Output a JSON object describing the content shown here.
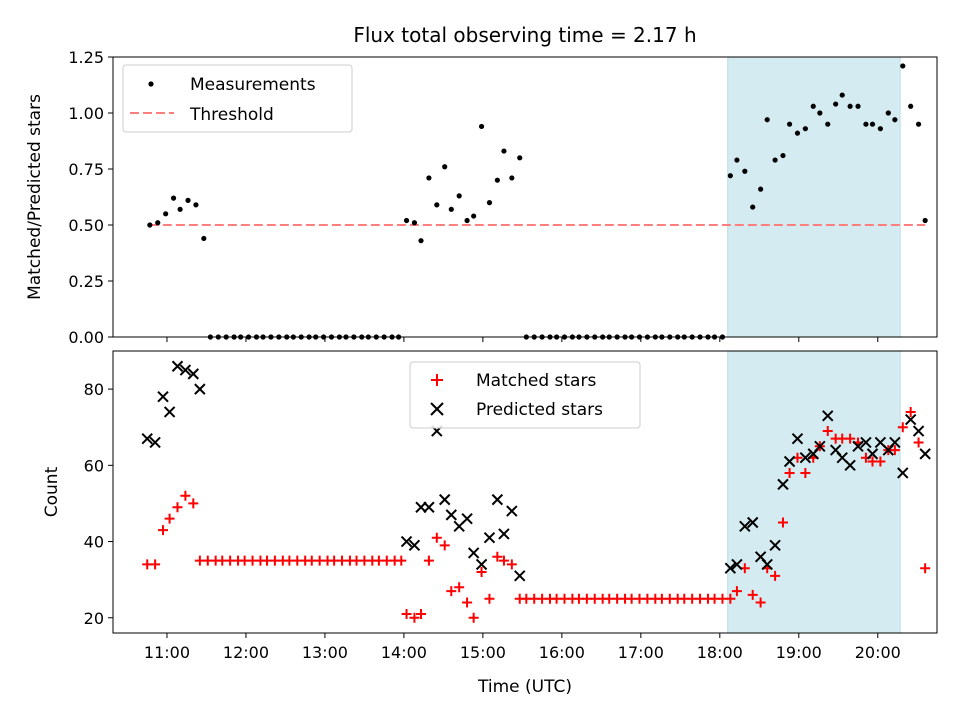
{
  "title": "Flux total observing time = 2.17 h",
  "chart_data": [
    {
      "type": "scatter",
      "ylabel": "Matched/Predicted stars",
      "xlim": [
        "10:19",
        "20:45"
      ],
      "ylim": [
        0,
        1.25
      ],
      "yticks": [
        "0.00",
        "0.25",
        "0.50",
        "0.75",
        "1.00",
        "1.25"
      ],
      "threshold": 0.5,
      "highlight_span": [
        "18:06",
        "20:17"
      ],
      "highlight_color": "#d4ebf1",
      "legend": {
        "placement": "top-left",
        "measurements": "Measurements",
        "threshold": "Threshold"
      },
      "series": [
        {
          "name": "Measurements",
          "color": "#000000",
          "points": [
            [
              "10:47",
              0.5
            ],
            [
              "10:53",
              0.51
            ],
            [
              "10:59",
              0.55
            ],
            [
              "11:05",
              0.62
            ],
            [
              "11:10",
              0.57
            ],
            [
              "11:16",
              0.61
            ],
            [
              "11:22",
              0.59
            ],
            [
              "11:28",
              0.44
            ],
            [
              "11:33",
              0
            ],
            [
              "11:39",
              0
            ],
            [
              "11:45",
              0
            ],
            [
              "11:51",
              0
            ],
            [
              "11:56",
              0
            ],
            [
              "12:02",
              0
            ],
            [
              "12:08",
              0
            ],
            [
              "12:13",
              0
            ],
            [
              "12:19",
              0
            ],
            [
              "12:25",
              0
            ],
            [
              "12:31",
              0
            ],
            [
              "12:36",
              0
            ],
            [
              "12:42",
              0
            ],
            [
              "12:48",
              0
            ],
            [
              "12:53",
              0
            ],
            [
              "12:59",
              0
            ],
            [
              "13:05",
              0
            ],
            [
              "13:11",
              0
            ],
            [
              "13:16",
              0
            ],
            [
              "13:22",
              0
            ],
            [
              "13:28",
              0
            ],
            [
              "13:33",
              0
            ],
            [
              "13:39",
              0
            ],
            [
              "13:45",
              0
            ],
            [
              "13:51",
              0
            ],
            [
              "13:56",
              0
            ],
            [
              "14:02",
              0.52
            ],
            [
              "14:08",
              0.51
            ],
            [
              "14:13",
              0.43
            ],
            [
              "14:19",
              0.71
            ],
            [
              "14:25",
              0.59
            ],
            [
              "14:31",
              0.76
            ],
            [
              "14:36",
              0.57
            ],
            [
              "14:42",
              0.63
            ],
            [
              "14:48",
              0.52
            ],
            [
              "14:53",
              0.54
            ],
            [
              "14:59",
              0.94
            ],
            [
              "15:05",
              0.6
            ],
            [
              "15:11",
              0.7
            ],
            [
              "15:16",
              0.83
            ],
            [
              "15:22",
              0.71
            ],
            [
              "15:28",
              0.8
            ],
            [
              "15:33",
              0
            ],
            [
              "15:39",
              0
            ],
            [
              "15:45",
              0
            ],
            [
              "15:51",
              0
            ],
            [
              "15:56",
              0
            ],
            [
              "16:02",
              0
            ],
            [
              "16:08",
              0
            ],
            [
              "16:13",
              0
            ],
            [
              "16:19",
              0
            ],
            [
              "16:25",
              0
            ],
            [
              "16:31",
              0
            ],
            [
              "16:36",
              0
            ],
            [
              "16:42",
              0
            ],
            [
              "16:48",
              0
            ],
            [
              "16:53",
              0
            ],
            [
              "16:59",
              0
            ],
            [
              "17:05",
              0
            ],
            [
              "17:11",
              0
            ],
            [
              "17:16",
              0
            ],
            [
              "17:22",
              0
            ],
            [
              "17:28",
              0
            ],
            [
              "17:33",
              0
            ],
            [
              "17:39",
              0
            ],
            [
              "17:45",
              0
            ],
            [
              "17:51",
              0
            ],
            [
              "17:56",
              0
            ],
            [
              "18:02",
              0
            ],
            [
              "18:08",
              0.72
            ],
            [
              "18:13",
              0.79
            ],
            [
              "18:19",
              0.74
            ],
            [
              "18:25",
              0.58
            ],
            [
              "18:31",
              0.66
            ],
            [
              "18:36",
              0.97
            ],
            [
              "18:42",
              0.79
            ],
            [
              "18:48",
              0.81
            ],
            [
              "18:53",
              0.95
            ],
            [
              "18:59",
              0.91
            ],
            [
              "19:05",
              0.93
            ],
            [
              "19:11",
              1.03
            ],
            [
              "19:16",
              1.0
            ],
            [
              "19:22",
              0.95
            ],
            [
              "19:28",
              1.04
            ],
            [
              "19:33",
              1.08
            ],
            [
              "19:39",
              1.03
            ],
            [
              "19:45",
              1.03
            ],
            [
              "19:51",
              0.95
            ],
            [
              "19:56",
              0.95
            ],
            [
              "20:02",
              0.93
            ],
            [
              "20:08",
              1.0
            ],
            [
              "20:13",
              0.97
            ],
            [
              "20:19",
              1.21
            ],
            [
              "20:25",
              1.03
            ],
            [
              "20:31",
              0.95
            ],
            [
              "20:36",
              0.52
            ]
          ]
        }
      ]
    },
    {
      "type": "scatter",
      "xlabel": "Time (UTC)",
      "ylabel": "Count",
      "xlim": [
        "10:19",
        "20:45"
      ],
      "ylim": [
        16,
        90
      ],
      "yticks": [
        "20",
        "40",
        "60",
        "80"
      ],
      "xticks": [
        "11:00",
        "12:00",
        "13:00",
        "14:00",
        "15:00",
        "16:00",
        "17:00",
        "18:00",
        "19:00",
        "20:00"
      ],
      "highlight_span": [
        "18:06",
        "20:17"
      ],
      "legend": {
        "placement": "top-center",
        "matched": "Matched stars",
        "predicted": "Predicted stars"
      },
      "series": [
        {
          "name": "Matched stars",
          "marker": "plus",
          "color": "#ff0000",
          "points": [
            [
              "10:45",
              34
            ],
            [
              "10:51",
              34
            ],
            [
              "10:57",
              43
            ],
            [
              "11:02",
              46
            ],
            [
              "11:08",
              49
            ],
            [
              "11:14",
              52
            ],
            [
              "11:20",
              50
            ],
            [
              "11:25",
              35
            ],
            [
              "11:31",
              35
            ],
            [
              "11:37",
              35
            ],
            [
              "11:42",
              35
            ],
            [
              "11:48",
              35
            ],
            [
              "11:54",
              35
            ],
            [
              "11:59",
              35
            ],
            [
              "12:05",
              35
            ],
            [
              "12:11",
              35
            ],
            [
              "12:16",
              35
            ],
            [
              "12:22",
              35
            ],
            [
              "12:28",
              35
            ],
            [
              "12:33",
              35
            ],
            [
              "12:39",
              35
            ],
            [
              "12:45",
              35
            ],
            [
              "12:50",
              35
            ],
            [
              "12:56",
              35
            ],
            [
              "13:02",
              35
            ],
            [
              "13:07",
              35
            ],
            [
              "13:13",
              35
            ],
            [
              "13:19",
              35
            ],
            [
              "13:24",
              35
            ],
            [
              "13:30",
              35
            ],
            [
              "13:36",
              35
            ],
            [
              "13:41",
              35
            ],
            [
              "13:47",
              35
            ],
            [
              "13:53",
              35
            ],
            [
              "13:58",
              35
            ],
            [
              "14:02",
              21
            ],
            [
              "14:08",
              20
            ],
            [
              "14:13",
              21
            ],
            [
              "14:19",
              35
            ],
            [
              "14:25",
              41
            ],
            [
              "14:31",
              39
            ],
            [
              "14:36",
              27
            ],
            [
              "14:42",
              28
            ],
            [
              "14:48",
              24
            ],
            [
              "14:53",
              20
            ],
            [
              "14:59",
              32
            ],
            [
              "15:05",
              25
            ],
            [
              "15:11",
              36
            ],
            [
              "15:16",
              35
            ],
            [
              "15:22",
              34
            ],
            [
              "15:28",
              25
            ],
            [
              "15:33",
              25
            ],
            [
              "15:39",
              25
            ],
            [
              "15:45",
              25
            ],
            [
              "15:51",
              25
            ],
            [
              "15:56",
              25
            ],
            [
              "16:02",
              25
            ],
            [
              "16:08",
              25
            ],
            [
              "16:13",
              25
            ],
            [
              "16:19",
              25
            ],
            [
              "16:25",
              25
            ],
            [
              "16:31",
              25
            ],
            [
              "16:36",
              25
            ],
            [
              "16:42",
              25
            ],
            [
              "16:48",
              25
            ],
            [
              "16:53",
              25
            ],
            [
              "16:59",
              25
            ],
            [
              "17:05",
              25
            ],
            [
              "17:11",
              25
            ],
            [
              "17:16",
              25
            ],
            [
              "17:22",
              25
            ],
            [
              "17:28",
              25
            ],
            [
              "17:33",
              25
            ],
            [
              "17:39",
              25
            ],
            [
              "17:45",
              25
            ],
            [
              "17:51",
              25
            ],
            [
              "17:56",
              25
            ],
            [
              "18:02",
              25
            ],
            [
              "18:08",
              25
            ],
            [
              "18:13",
              27
            ],
            [
              "18:19",
              33
            ],
            [
              "18:25",
              26
            ],
            [
              "18:31",
              24
            ],
            [
              "18:36",
              33
            ],
            [
              "18:42",
              31
            ],
            [
              "18:48",
              45
            ],
            [
              "18:53",
              58
            ],
            [
              "18:59",
              62
            ],
            [
              "19:05",
              58
            ],
            [
              "19:11",
              62
            ],
            [
              "19:16",
              65
            ],
            [
              "19:22",
              69
            ],
            [
              "19:28",
              67
            ],
            [
              "19:33",
              67
            ],
            [
              "19:39",
              67
            ],
            [
              "19:45",
              66
            ],
            [
              "19:51",
              62
            ],
            [
              "19:56",
              61
            ],
            [
              "20:02",
              61
            ],
            [
              "20:08",
              64
            ],
            [
              "20:13",
              64
            ],
            [
              "20:19",
              70
            ],
            [
              "20:25",
              74
            ],
            [
              "20:31",
              66
            ],
            [
              "20:36",
              33
            ]
          ]
        },
        {
          "name": "Predicted stars",
          "marker": "x",
          "color": "#000000",
          "points": [
            [
              "10:45",
              67
            ],
            [
              "10:51",
              66
            ],
            [
              "10:57",
              78
            ],
            [
              "11:02",
              74
            ],
            [
              "11:08",
              86
            ],
            [
              "11:14",
              85
            ],
            [
              "11:20",
              84
            ],
            [
              "11:25",
              80
            ],
            [
              "14:02",
              40
            ],
            [
              "14:08",
              39
            ],
            [
              "14:13",
              49
            ],
            [
              "14:19",
              49
            ],
            [
              "14:25",
              69
            ],
            [
              "14:31",
              51
            ],
            [
              "14:36",
              47
            ],
            [
              "14:42",
              44
            ],
            [
              "14:48",
              46
            ],
            [
              "14:53",
              37
            ],
            [
              "14:59",
              34
            ],
            [
              "15:05",
              41
            ],
            [
              "15:11",
              51
            ],
            [
              "15:16",
              42
            ],
            [
              "15:22",
              48
            ],
            [
              "15:28",
              31
            ],
            [
              "18:08",
              33
            ],
            [
              "18:13",
              34
            ],
            [
              "18:19",
              44
            ],
            [
              "18:25",
              45
            ],
            [
              "18:31",
              36
            ],
            [
              "18:36",
              34
            ],
            [
              "18:42",
              39
            ],
            [
              "18:48",
              55
            ],
            [
              "18:53",
              61
            ],
            [
              "18:59",
              67
            ],
            [
              "19:05",
              62
            ],
            [
              "19:11",
              63
            ],
            [
              "19:16",
              65
            ],
            [
              "19:22",
              73
            ],
            [
              "19:28",
              64
            ],
            [
              "19:33",
              62
            ],
            [
              "19:39",
              60
            ],
            [
              "19:45",
              65
            ],
            [
              "19:51",
              66
            ],
            [
              "19:56",
              63
            ],
            [
              "20:02",
              66
            ],
            [
              "20:08",
              64
            ],
            [
              "20:13",
              66
            ],
            [
              "20:19",
              58
            ],
            [
              "20:25",
              72
            ],
            [
              "20:31",
              69
            ],
            [
              "20:36",
              63
            ]
          ]
        }
      ]
    }
  ]
}
